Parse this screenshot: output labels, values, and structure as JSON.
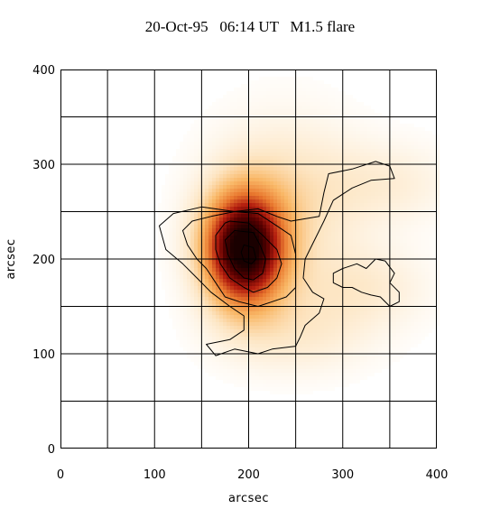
{
  "chart_data": {
    "type": "heatmap",
    "title": "20-Oct-95   06:14 UT   M1.5 flare",
    "xlabel": "arcsec",
    "ylabel": "arcsec",
    "xlim": [
      0,
      400
    ],
    "ylim": [
      0,
      400
    ],
    "x_ticks": [
      0,
      100,
      200,
      300,
      400
    ],
    "y_ticks": [
      0,
      100,
      200,
      300,
      400
    ],
    "grid": true,
    "grid_step": 50,
    "colormap": [
      "#ffffff",
      "#fde6c4",
      "#f9b766",
      "#e9792f",
      "#b31e0f",
      "#5a0000",
      "#1a0000"
    ],
    "emission_sources": [
      {
        "x": 195,
        "y": 210,
        "sx": 30,
        "sy": 42,
        "amplitude": 1.0
      },
      {
        "x": 240,
        "y": 260,
        "sx": 55,
        "sy": 60,
        "amplitude": 0.18
      },
      {
        "x": 320,
        "y": 170,
        "sx": 50,
        "sy": 30,
        "amplitude": 0.12
      },
      {
        "x": 250,
        "y": 120,
        "sx": 55,
        "sy": 30,
        "amplitude": 0.12
      },
      {
        "x": 350,
        "y": 280,
        "sx": 50,
        "sy": 30,
        "amplitude": 0.1
      }
    ],
    "contours": [
      [
        [
          185,
          250
        ],
        [
          210,
          253
        ],
        [
          230,
          245
        ],
        [
          245,
          240
        ],
        [
          275,
          245
        ],
        [
          280,
          270
        ],
        [
          285,
          290
        ],
        [
          310,
          295
        ],
        [
          335,
          303
        ],
        [
          350,
          298
        ],
        [
          355,
          285
        ],
        [
          330,
          283
        ],
        [
          310,
          275
        ],
        [
          290,
          262
        ],
        [
          280,
          240
        ],
        [
          270,
          220
        ],
        [
          260,
          200
        ],
        [
          258,
          180
        ],
        [
          268,
          165
        ],
        [
          280,
          158
        ],
        [
          275,
          143
        ],
        [
          260,
          130
        ],
        [
          255,
          118
        ],
        [
          250,
          108
        ],
        [
          225,
          105
        ],
        [
          210,
          100
        ],
        [
          185,
          105
        ],
        [
          165,
          98
        ],
        [
          155,
          110
        ],
        [
          180,
          115
        ],
        [
          195,
          125
        ],
        [
          195,
          140
        ],
        [
          180,
          150
        ],
        [
          160,
          165
        ],
        [
          145,
          180
        ],
        [
          130,
          195
        ],
        [
          112,
          210
        ],
        [
          105,
          235
        ],
        [
          120,
          248
        ],
        [
          150,
          255
        ],
        [
          185,
          250
        ]
      ],
      [
        [
          160,
          245
        ],
        [
          185,
          250
        ],
        [
          210,
          248
        ],
        [
          230,
          235
        ],
        [
          245,
          225
        ],
        [
          250,
          205
        ],
        [
          250,
          185
        ],
        [
          250,
          170
        ],
        [
          240,
          160
        ],
        [
          225,
          155
        ],
        [
          210,
          150
        ],
        [
          190,
          155
        ],
        [
          175,
          160
        ],
        [
          165,
          175
        ],
        [
          155,
          190
        ],
        [
          145,
          200
        ],
        [
          135,
          215
        ],
        [
          130,
          230
        ],
        [
          140,
          240
        ],
        [
          160,
          245
        ]
      ],
      [
        [
          180,
          240
        ],
        [
          200,
          238
        ],
        [
          215,
          225
        ],
        [
          230,
          210
        ],
        [
          235,
          195
        ],
        [
          230,
          180
        ],
        [
          220,
          170
        ],
        [
          205,
          165
        ],
        [
          195,
          170
        ],
        [
          180,
          180
        ],
        [
          170,
          195
        ],
        [
          165,
          210
        ],
        [
          165,
          225
        ],
        [
          175,
          238
        ],
        [
          180,
          240
        ]
      ],
      [
        [
          185,
          230
        ],
        [
          205,
          228
        ],
        [
          212,
          215
        ],
        [
          218,
          200
        ],
        [
          215,
          185
        ],
        [
          205,
          178
        ],
        [
          195,
          180
        ],
        [
          185,
          190
        ],
        [
          178,
          205
        ],
        [
          175,
          220
        ],
        [
          185,
          230
        ]
      ],
      [
        [
          195,
          215
        ],
        [
          205,
          212
        ],
        [
          208,
          200
        ],
        [
          203,
          195
        ],
        [
          195,
          198
        ],
        [
          192,
          207
        ],
        [
          195,
          215
        ]
      ],
      [
        [
          290,
          185
        ],
        [
          300,
          190
        ],
        [
          315,
          195
        ],
        [
          325,
          190
        ],
        [
          335,
          200
        ],
        [
          345,
          198
        ],
        [
          355,
          185
        ],
        [
          350,
          175
        ],
        [
          360,
          165
        ],
        [
          360,
          155
        ],
        [
          350,
          150
        ],
        [
          340,
          160
        ],
        [
          330,
          162
        ],
        [
          320,
          165
        ],
        [
          310,
          170
        ],
        [
          300,
          170
        ],
        [
          290,
          175
        ],
        [
          290,
          185
        ]
      ]
    ]
  }
}
